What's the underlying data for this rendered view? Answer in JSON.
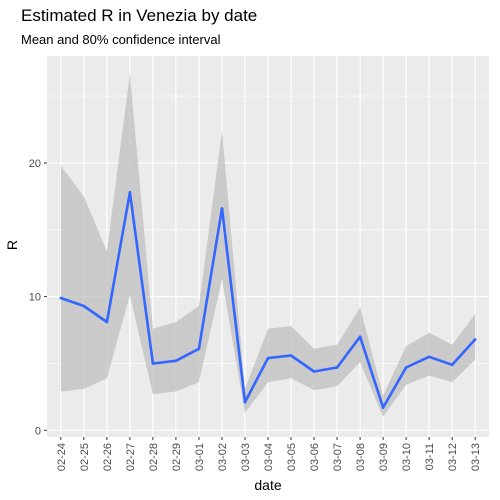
{
  "chart_data": {
    "type": "line",
    "title": "Estimated R in Venezia by date",
    "subtitle": "Mean and 80% confidence interval",
    "xlabel": "date",
    "ylabel": "R",
    "ylim": [
      -0.5,
      28
    ],
    "yticks": [
      0,
      10,
      20
    ],
    "categories": [
      "02-24",
      "02-25",
      "02-26",
      "02-27",
      "02-28",
      "02-29",
      "03-01",
      "03-02",
      "03-03",
      "03-04",
      "03-05",
      "03-06",
      "03-07",
      "03-08",
      "03-09",
      "03-10",
      "03-11",
      "03-12",
      "03-13"
    ],
    "series": [
      {
        "values": [
          9.9,
          9.3,
          8.1,
          17.8,
          5.0,
          5.2,
          6.1,
          16.6,
          2.1,
          5.4,
          5.6,
          4.4,
          4.7,
          7.0,
          1.7,
          4.7,
          5.5,
          4.9,
          6.8
        ],
        "lower": [
          2.9,
          3.1,
          3.9,
          10.1,
          2.7,
          2.9,
          3.6,
          11.3,
          1.3,
          3.6,
          3.9,
          3.0,
          3.3,
          5.1,
          1.0,
          3.4,
          4.1,
          3.6,
          5.3
        ],
        "upper": [
          19.8,
          17.5,
          13.4,
          26.7,
          7.6,
          8.1,
          9.3,
          22.4,
          3.1,
          7.6,
          7.8,
          6.1,
          6.4,
          9.2,
          2.6,
          6.3,
          7.3,
          6.4,
          8.7
        ]
      }
    ],
    "grid": true,
    "colors": {
      "line": "#3366FF",
      "ribbon": "#BFBFBF",
      "panel": "#EBEBEB",
      "grid": "#FFFFFF"
    }
  }
}
